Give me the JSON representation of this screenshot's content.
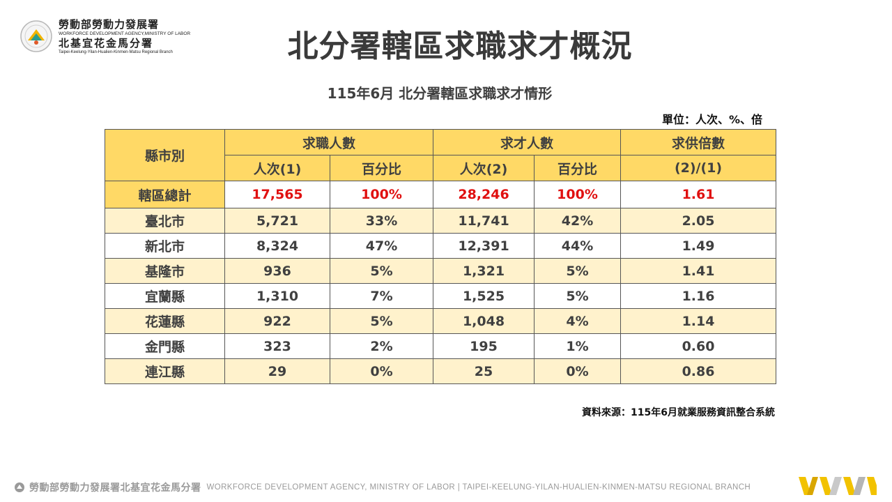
{
  "logo": {
    "line1": "勞動部勞動力發展署",
    "line2": "WORKFORCE DEVELOPMENT AGENCY,MINISTRY OF LABOR",
    "line3": "北基宜花金馬分署",
    "line4": "Taipei-Keelung-Yilan-Hualien-Kinmen-Matsu Regional Branch"
  },
  "title": "北分署轄區求職求才概況",
  "subtitle": "115年6月 北分署轄區求職求才情形",
  "unit": "單位：人次、%、倍",
  "table": {
    "header": {
      "region": "縣市別",
      "seekers": "求職人數",
      "vacancies": "求才人數",
      "ratio": "求供倍數",
      "seekers_count": "人次(1)",
      "seekers_pct": "百分比",
      "vacancies_count": "人次(2)",
      "vacancies_pct": "百分比",
      "ratio_formula": "(2)/(1)"
    },
    "rows": [
      {
        "region": "轄區總計",
        "seekers": "17,565",
        "seekers_pct": "100%",
        "vacancies": "28,246",
        "vacancies_pct": "100%",
        "ratio": "1.61"
      },
      {
        "region": "臺北市",
        "seekers": "5,721",
        "seekers_pct": "33%",
        "vacancies": "11,741",
        "vacancies_pct": "42%",
        "ratio": "2.05"
      },
      {
        "region": "新北市",
        "seekers": "8,324",
        "seekers_pct": "47%",
        "vacancies": "12,391",
        "vacancies_pct": "44%",
        "ratio": "1.49"
      },
      {
        "region": "基隆市",
        "seekers": "936",
        "seekers_pct": "5%",
        "vacancies": "1,321",
        "vacancies_pct": "5%",
        "ratio": "1.41"
      },
      {
        "region": "宜蘭縣",
        "seekers": "1,310",
        "seekers_pct": "7%",
        "vacancies": "1,525",
        "vacancies_pct": "5%",
        "ratio": "1.16"
      },
      {
        "region": "花蓮縣",
        "seekers": "922",
        "seekers_pct": "5%",
        "vacancies": "1,048",
        "vacancies_pct": "4%",
        "ratio": "1.14"
      },
      {
        "region": "金門縣",
        "seekers": "323",
        "seekers_pct": "2%",
        "vacancies": "195",
        "vacancies_pct": "1%",
        "ratio": "0.60"
      },
      {
        "region": "連江縣",
        "seekers": "29",
        "seekers_pct": "0%",
        "vacancies": "25",
        "vacancies_pct": "0%",
        "ratio": "0.86"
      }
    ]
  },
  "source": "資料來源：115年6月就業服務資訊整合系統",
  "footer": {
    "zh": "勞動部勞動力發展署北基宜花金馬分署",
    "en": "WORKFORCE DEVELOPMENT AGENCY, MINISTRY OF LABOR  |  TAIPEI-KEELUNG-YILAN-HUALIEN-KINMEN-MATSU REGIONAL BRANCH"
  },
  "colors": {
    "header_bg": "#ffd966",
    "odd_row_bg": "#fff2cc",
    "total_text": "#e01010",
    "title_text": "#3a3a3a"
  },
  "icons": [
    "agency-logo-icon",
    "footer-agency-icon",
    "brand-stripes-icon"
  ]
}
